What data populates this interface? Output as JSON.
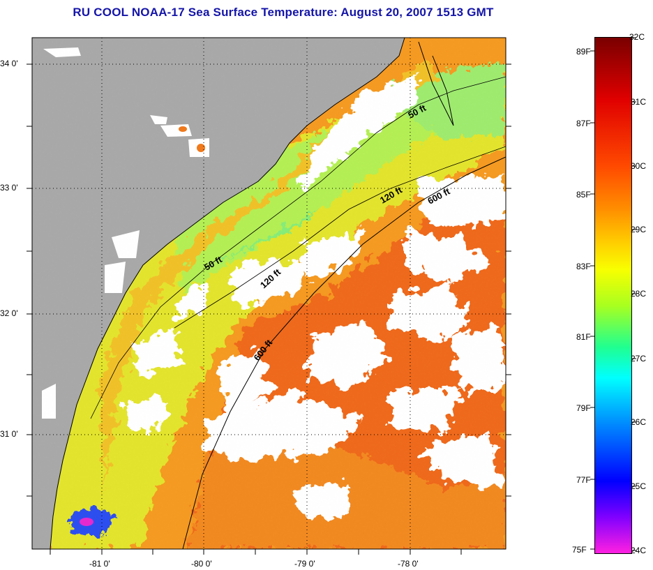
{
  "title": "RU COOL  NOAA-17  Sea Surface Temperature:  August 20, 2007 1513 GMT",
  "map": {
    "lat_labels": [
      "34 0'",
      "33 0'",
      "32 0'",
      "31 0'"
    ],
    "lon_labels": [
      "-81 0'",
      "-80 0'",
      "-79 0'",
      "-78 0'"
    ],
    "isobath_labels": [
      "50 ft",
      "50 ft",
      "120 ft",
      "120 ft",
      "600 ft",
      "600 ft"
    ],
    "colors": {
      "land": "#a9a9a9",
      "cloud": "#ffffff",
      "ocean_hot": "#ef6a1c",
      "ocean_warm": "#f59a22",
      "ocean_mid": "#e7e22a",
      "ocean_cool": "#a6f05a",
      "nearshore": "#f1c12c",
      "cold_spot": "#1e2fd8"
    }
  },
  "colorbar": {
    "celsius": [
      "32C",
      "31C",
      "30C",
      "29C",
      "28C",
      "27C",
      "26C",
      "25C",
      "24C"
    ],
    "fahrenheit": [
      "89F",
      "87F",
      "85F",
      "83F",
      "81F",
      "79F",
      "77F",
      "75F"
    ],
    "stops": [
      "#7a0000",
      "#d80000",
      "#ff3000",
      "#ff8c00",
      "#ffc800",
      "#f0ff00",
      "#9cff00",
      "#00ff80",
      "#00ffff",
      "#0096ff",
      "#0000ff",
      "#7a00ff",
      "#ff00ff"
    ]
  }
}
